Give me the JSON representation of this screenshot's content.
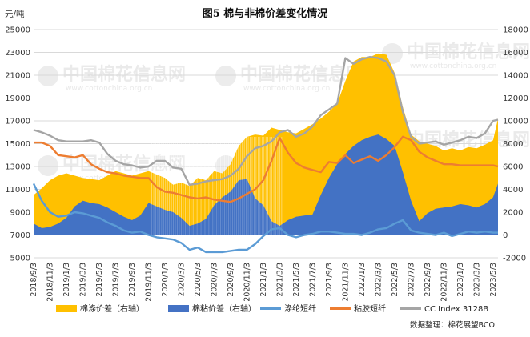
{
  "chart_data": {
    "type": "area",
    "title": "图5  棉与非棉价差变化情况",
    "y_left_label": "元/吨",
    "y_left_range": [
      5000,
      25000
    ],
    "y_left_ticks": [
      "5000",
      "7000",
      "9000",
      "11000",
      "13000",
      "15000",
      "17000",
      "19000",
      "21000",
      "23000",
      "25000"
    ],
    "y_right_range": [
      -2000,
      18000
    ],
    "y_right_ticks": [
      "-2000",
      "0",
      "2000",
      "4000",
      "6000",
      "8000",
      "10000",
      "12000",
      "14000",
      "16000",
      "18000"
    ],
    "x_ticks": [
      "2018/9/3",
      "2018/11/3",
      "2019/1/3",
      "2019/3/3",
      "2019/5/3",
      "2019/7/3",
      "2019/9/3",
      "2019/11/3",
      "2020/1/3",
      "2020/3/3",
      "2020/5/3",
      "2020/7/3",
      "2020/9/3",
      "2020/11/3",
      "2021/1/3",
      "2021/3/3",
      "2021/5/3",
      "2021/7/3",
      "2021/9/3",
      "2021/11/3",
      "2022/1/3",
      "2022/3/3",
      "2022/5/3",
      "2022/7/3",
      "2022/9/3",
      "2022/11/3",
      "2023/1/3",
      "2023/3/3",
      "2023/5/3"
    ],
    "grid": "horizontal",
    "legend_position": "bottom",
    "series": [
      {
        "name": "棉涤价差（右轴）",
        "axis": "right",
        "kind": "area",
        "color": "#FFC000",
        "points": [
          [
            0,
            3500
          ],
          [
            0.5,
            4100
          ],
          [
            1,
            4800
          ],
          [
            1.5,
            5200
          ],
          [
            2,
            5400
          ],
          [
            3,
            5000
          ],
          [
            4,
            4800
          ],
          [
            5,
            5600
          ],
          [
            6,
            5200
          ],
          [
            7,
            5600
          ],
          [
            8,
            5000
          ],
          [
            8.5,
            4400
          ],
          [
            9,
            4600
          ],
          [
            9.5,
            4300
          ],
          [
            10,
            5000
          ],
          [
            10.5,
            4800
          ],
          [
            11,
            5600
          ],
          [
            11.5,
            5400
          ],
          [
            12,
            6200
          ],
          [
            12.5,
            7800
          ],
          [
            13,
            8600
          ],
          [
            13.5,
            8800
          ],
          [
            14,
            8700
          ],
          [
            14.5,
            9400
          ],
          [
            15,
            9200
          ],
          [
            15.5,
            9000
          ],
          [
            16,
            8900
          ],
          [
            16.5,
            9300
          ],
          [
            17,
            9700
          ],
          [
            17.5,
            10200
          ],
          [
            18,
            10800
          ],
          [
            18.5,
            11500
          ],
          [
            19,
            13500
          ],
          [
            19.5,
            15200
          ],
          [
            20,
            15600
          ],
          [
            20.5,
            15600
          ],
          [
            21,
            15900
          ],
          [
            21.5,
            15800
          ],
          [
            22,
            14200
          ],
          [
            22.5,
            11200
          ],
          [
            23,
            8800
          ],
          [
            23.5,
            8200
          ],
          [
            24,
            8000
          ],
          [
            24.5,
            7800
          ],
          [
            25,
            7400
          ],
          [
            25.5,
            7600
          ],
          [
            26,
            7400
          ],
          [
            26.5,
            7700
          ],
          [
            27,
            7600
          ],
          [
            27.5,
            7900
          ],
          [
            28,
            8300
          ],
          [
            28.3,
            10200
          ]
        ]
      },
      {
        "name": "棉粘价差（右轴）",
        "axis": "right",
        "kind": "area",
        "color": "#4472C4",
        "points": [
          [
            0,
            1000
          ],
          [
            0.5,
            600
          ],
          [
            1,
            700
          ],
          [
            1.5,
            1000
          ],
          [
            2,
            1500
          ],
          [
            2.5,
            2500
          ],
          [
            3,
            3000
          ],
          [
            3.5,
            2800
          ],
          [
            4,
            2700
          ],
          [
            4.5,
            2400
          ],
          [
            5,
            2000
          ],
          [
            5.5,
            1600
          ],
          [
            6,
            1300
          ],
          [
            6.5,
            1700
          ],
          [
            7,
            2800
          ],
          [
            7.5,
            2500
          ],
          [
            8,
            2200
          ],
          [
            8.5,
            2000
          ],
          [
            9,
            1500
          ],
          [
            9.5,
            800
          ],
          [
            10,
            1000
          ],
          [
            10.5,
            1400
          ],
          [
            11,
            2600
          ],
          [
            11.5,
            3300
          ],
          [
            12,
            3800
          ],
          [
            12.5,
            4800
          ],
          [
            13,
            4900
          ],
          [
            13.5,
            3200
          ],
          [
            14,
            2600
          ],
          [
            14.5,
            1200
          ],
          [
            15,
            800
          ],
          [
            15.5,
            1300
          ],
          [
            16,
            1600
          ],
          [
            17,
            1800
          ],
          [
            17.5,
            3500
          ],
          [
            18,
            5000
          ],
          [
            18.5,
            6200
          ],
          [
            19,
            7100
          ],
          [
            19.5,
            7800
          ],
          [
            20,
            8300
          ],
          [
            20.5,
            8600
          ],
          [
            21,
            8800
          ],
          [
            21.5,
            8400
          ],
          [
            22,
            7800
          ],
          [
            22.5,
            5500
          ],
          [
            23,
            3000
          ],
          [
            23.5,
            1200
          ],
          [
            24,
            1900
          ],
          [
            24.5,
            2300
          ],
          [
            25,
            2400
          ],
          [
            25.5,
            2500
          ],
          [
            26,
            2700
          ],
          [
            26.5,
            2600
          ],
          [
            27,
            2400
          ],
          [
            27.5,
            2700
          ],
          [
            28,
            3300
          ],
          [
            28.3,
            4500
          ]
        ]
      },
      {
        "name": "涤纶短纤",
        "axis": "left",
        "kind": "line",
        "color": "#5B9BD5",
        "points": [
          [
            0,
            11500
          ],
          [
            0.5,
            10000
          ],
          [
            1,
            9000
          ],
          [
            1.5,
            8600
          ],
          [
            2,
            8700
          ],
          [
            2.5,
            9000
          ],
          [
            3,
            8900
          ],
          [
            3.5,
            8700
          ],
          [
            4,
            8500
          ],
          [
            4.5,
            8100
          ],
          [
            5,
            7800
          ],
          [
            5.5,
            7400
          ],
          [
            6,
            7200
          ],
          [
            6.5,
            7300
          ],
          [
            7,
            7000
          ],
          [
            7.5,
            6800
          ],
          [
            8,
            6700
          ],
          [
            8.5,
            6600
          ],
          [
            9,
            6300
          ],
          [
            9.5,
            5700
          ],
          [
            10,
            5900
          ],
          [
            10.5,
            5500
          ],
          [
            11,
            5500
          ],
          [
            11.5,
            5500
          ],
          [
            12,
            5600
          ],
          [
            12.5,
            5700
          ],
          [
            13,
            5700
          ],
          [
            13.5,
            6200
          ],
          [
            14,
            6900
          ],
          [
            14.5,
            7500
          ],
          [
            15,
            7600
          ],
          [
            15.5,
            7000
          ],
          [
            16,
            6800
          ],
          [
            16.5,
            7000
          ],
          [
            17,
            7100
          ],
          [
            17.5,
            7300
          ],
          [
            18,
            7300
          ],
          [
            18.5,
            7200
          ],
          [
            19,
            7100
          ],
          [
            19.5,
            7100
          ],
          [
            20,
            7000
          ],
          [
            20.5,
            7200
          ],
          [
            21,
            7500
          ],
          [
            21.5,
            7600
          ],
          [
            22,
            8000
          ],
          [
            22.5,
            8300
          ],
          [
            23,
            7400
          ],
          [
            23.5,
            7200
          ],
          [
            24,
            7100
          ],
          [
            24.5,
            7000
          ],
          [
            25,
            7200
          ],
          [
            25.5,
            6900
          ],
          [
            26,
            7100
          ],
          [
            26.5,
            7300
          ],
          [
            27,
            7200
          ],
          [
            27.5,
            7300
          ],
          [
            28,
            7200
          ],
          [
            28.3,
            7200
          ]
        ]
      },
      {
        "name": "粘胶短纤",
        "axis": "left",
        "kind": "line",
        "color": "#ED7D31",
        "points": [
          [
            0,
            15100
          ],
          [
            0.5,
            15100
          ],
          [
            1,
            14800
          ],
          [
            1.5,
            14000
          ],
          [
            2,
            13900
          ],
          [
            2.5,
            13800
          ],
          [
            3,
            14000
          ],
          [
            3.5,
            13200
          ],
          [
            4,
            12800
          ],
          [
            4.5,
            12500
          ],
          [
            5,
            12400
          ],
          [
            5.5,
            12200
          ],
          [
            6,
            12100
          ],
          [
            6.5,
            12000
          ],
          [
            7,
            12000
          ],
          [
            7.5,
            11200
          ],
          [
            8,
            10800
          ],
          [
            8.5,
            10700
          ],
          [
            9,
            10500
          ],
          [
            9.5,
            10300
          ],
          [
            10,
            10200
          ],
          [
            10.5,
            10300
          ],
          [
            11,
            10100
          ],
          [
            11.5,
            10000
          ],
          [
            12,
            9900
          ],
          [
            12.5,
            10200
          ],
          [
            13,
            10600
          ],
          [
            13.5,
            11000
          ],
          [
            14,
            11800
          ],
          [
            14.5,
            13500
          ],
          [
            15,
            15500
          ],
          [
            15.5,
            14200
          ],
          [
            16,
            13300
          ],
          [
            16.5,
            12900
          ],
          [
            17,
            12700
          ],
          [
            17.5,
            12500
          ],
          [
            18,
            13400
          ],
          [
            18.5,
            13300
          ],
          [
            19,
            14000
          ],
          [
            19.5,
            13300
          ],
          [
            20,
            13600
          ],
          [
            20.5,
            13900
          ],
          [
            21,
            13500
          ],
          [
            21.5,
            14000
          ],
          [
            22,
            14700
          ],
          [
            22.5,
            15600
          ],
          [
            23,
            15300
          ],
          [
            23.5,
            14300
          ],
          [
            24,
            13800
          ],
          [
            24.5,
            13500
          ],
          [
            25,
            13200
          ],
          [
            25.5,
            13200
          ],
          [
            26,
            13100
          ],
          [
            26.5,
            13100
          ],
          [
            27,
            13100
          ],
          [
            27.5,
            13100
          ],
          [
            28,
            13100
          ],
          [
            28.3,
            13000
          ]
        ]
      },
      {
        "name": "CC Index 3128B",
        "axis": "left",
        "kind": "line",
        "color": "#A5A5A5",
        "points": [
          [
            0,
            16200
          ],
          [
            0.5,
            16000
          ],
          [
            1,
            15700
          ],
          [
            1.5,
            15300
          ],
          [
            2,
            15200
          ],
          [
            2.5,
            15200
          ],
          [
            3,
            15200
          ],
          [
            3.5,
            15300
          ],
          [
            4,
            15100
          ],
          [
            4.5,
            14100
          ],
          [
            5,
            13500
          ],
          [
            5.5,
            13200
          ],
          [
            6,
            13100
          ],
          [
            6.5,
            12900
          ],
          [
            7,
            13000
          ],
          [
            7.5,
            13500
          ],
          [
            8,
            13500
          ],
          [
            8.5,
            12900
          ],
          [
            9,
            12800
          ],
          [
            9.5,
            11400
          ],
          [
            10,
            11500
          ],
          [
            10.5,
            11700
          ],
          [
            11,
            11800
          ],
          [
            11.5,
            11900
          ],
          [
            12,
            12200
          ],
          [
            12.5,
            12800
          ],
          [
            13,
            13900
          ],
          [
            13.5,
            14600
          ],
          [
            14,
            14800
          ],
          [
            14.5,
            15200
          ],
          [
            15,
            16000
          ],
          [
            15.5,
            16200
          ],
          [
            16,
            15600
          ],
          [
            16.5,
            15900
          ],
          [
            17,
            16500
          ],
          [
            17.5,
            17500
          ],
          [
            18,
            18000
          ],
          [
            18.5,
            18500
          ],
          [
            19,
            22500
          ],
          [
            19.5,
            22000
          ],
          [
            20,
            22400
          ],
          [
            20.5,
            22600
          ],
          [
            21,
            22500
          ],
          [
            21.5,
            22200
          ],
          [
            22,
            21000
          ],
          [
            22.5,
            17800
          ],
          [
            23,
            15600
          ],
          [
            23.5,
            15000
          ],
          [
            24,
            15100
          ],
          [
            24.5,
            15200
          ],
          [
            25,
            14900
          ],
          [
            25.5,
            15100
          ],
          [
            26,
            15300
          ],
          [
            26.5,
            15600
          ],
          [
            27,
            15500
          ],
          [
            27.5,
            15900
          ],
          [
            28,
            17000
          ],
          [
            28.3,
            17100
          ]
        ]
      }
    ]
  },
  "watermark": {
    "text": "中国棉花信息网",
    "url": "www.cottonchina.org.cn"
  },
  "source_note": "数据整理：棉花展望BCO"
}
